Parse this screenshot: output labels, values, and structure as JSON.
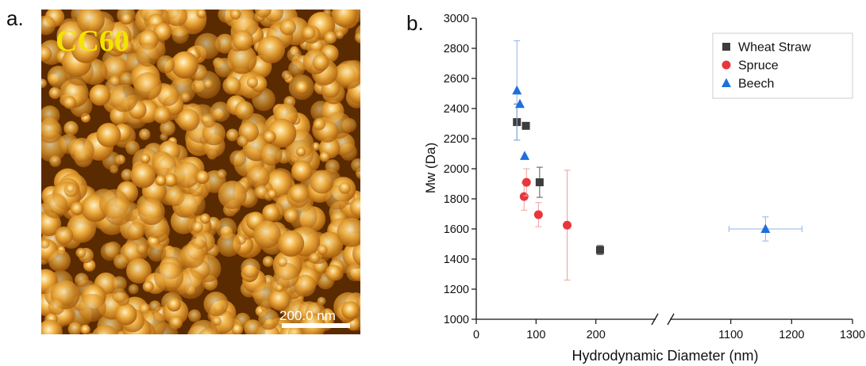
{
  "panel_a": {
    "label": "a.",
    "sample_label": "CC60",
    "scale_bar_label": "200.0 nm",
    "colors": {
      "dark": "#5a2a00",
      "mid": "#c77a12",
      "light": "#fff2c0",
      "label": "#f3e300"
    }
  },
  "panel_b": {
    "label": "b."
  },
  "chart_data": {
    "type": "scatter",
    "xlabel": "Hydrodynamic Diameter (nm)",
    "ylabel": "Mw (Da)",
    "x_axis_broken": true,
    "x_segments": [
      {
        "range": [
          0,
          300
        ],
        "ticks": [
          0,
          100,
          200
        ]
      },
      {
        "range": [
          1000,
          1300
        ],
        "ticks": [
          1100,
          1200,
          1300
        ]
      }
    ],
    "ylim": [
      1000,
      3000
    ],
    "yticks": [
      1000,
      1200,
      1400,
      1600,
      1800,
      2000,
      2200,
      2400,
      2600,
      2800,
      3000
    ],
    "legend_position": "top-right",
    "series": [
      {
        "name": "Wheat Straw",
        "marker": "square",
        "color": "#3d3d3d",
        "points": [
          {
            "x": 68,
            "y": 2310,
            "yerr": 120,
            "xerr": 0
          },
          {
            "x": 83,
            "y": 2285,
            "yerr": 0,
            "xerr": 0
          },
          {
            "x": 106,
            "y": 1910,
            "yerr": 100,
            "xerr": 0
          },
          {
            "x": 207,
            "y": 1460,
            "yerr": 30,
            "xerr": 0
          }
        ]
      },
      {
        "name": "Spruce",
        "marker": "circle",
        "color": "#e8363d",
        "points": [
          {
            "x": 80,
            "y": 1815,
            "yerr": 90,
            "xerr": 0
          },
          {
            "x": 84,
            "y": 1910,
            "yerr": 90,
            "xerr": 0
          },
          {
            "x": 104,
            "y": 1695,
            "yerr": 80,
            "xerr": 0
          },
          {
            "x": 152,
            "y": 1625,
            "yerr": 365,
            "xerr": 0
          }
        ]
      },
      {
        "name": "Beech",
        "marker": "triangle",
        "color": "#1f6fdc",
        "points": [
          {
            "x": 68,
            "y": 2520,
            "yerr": 330,
            "xerr": 0
          },
          {
            "x": 73,
            "y": 2430,
            "yerr": 0,
            "xerr": 0
          },
          {
            "x": 81,
            "y": 2085,
            "yerr": 0,
            "xerr": 0
          },
          {
            "x": 1157,
            "y": 1600,
            "yerr": 80,
            "xerr": 60
          }
        ]
      }
    ]
  }
}
